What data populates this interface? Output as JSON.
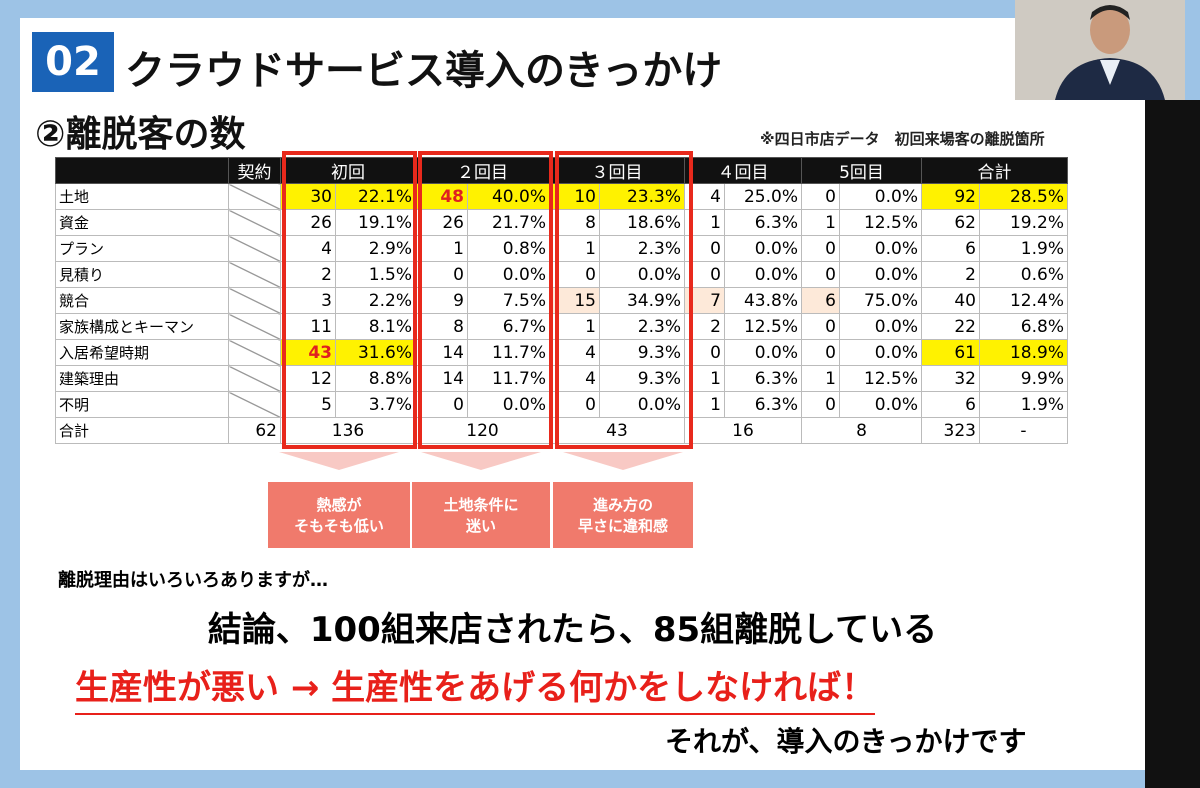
{
  "header": {
    "badge": "02",
    "title": "クラウドサービス導入のきっかけ",
    "subtitle": "②離脱客の数",
    "note": "※四日市店データ　初回来場客の離脱箇所"
  },
  "table": {
    "columns": [
      "契約",
      "初回",
      "２回目",
      "３回目",
      "４回目",
      "5回目",
      "合計"
    ],
    "rows": [
      [
        "土地",
        "30",
        "22.1%",
        "48",
        "40.0%",
        "10",
        "23.3%",
        "4",
        "25.0%",
        "0",
        "0.0%",
        "92",
        "28.5%"
      ],
      [
        "資金",
        "26",
        "19.1%",
        "26",
        "21.7%",
        "8",
        "18.6%",
        "1",
        "6.3%",
        "1",
        "12.5%",
        "62",
        "19.2%"
      ],
      [
        "プラン",
        "4",
        "2.9%",
        "1",
        "0.8%",
        "1",
        "2.3%",
        "0",
        "0.0%",
        "0",
        "0.0%",
        "6",
        "1.9%"
      ],
      [
        "見積り",
        "2",
        "1.5%",
        "0",
        "0.0%",
        "0",
        "0.0%",
        "0",
        "0.0%",
        "0",
        "0.0%",
        "2",
        "0.6%"
      ],
      [
        "競合",
        "3",
        "2.2%",
        "9",
        "7.5%",
        "15",
        "34.9%",
        "7",
        "43.8%",
        "6",
        "75.0%",
        "40",
        "12.4%"
      ],
      [
        "家族構成とキーマン",
        "11",
        "8.1%",
        "8",
        "6.7%",
        "1",
        "2.3%",
        "2",
        "12.5%",
        "0",
        "0.0%",
        "22",
        "6.8%"
      ],
      [
        "入居希望時期",
        "43",
        "31.6%",
        "14",
        "11.7%",
        "4",
        "9.3%",
        "0",
        "0.0%",
        "0",
        "0.0%",
        "61",
        "18.9%"
      ],
      [
        "建築理由",
        "12",
        "8.8%",
        "14",
        "11.7%",
        "4",
        "9.3%",
        "1",
        "6.3%",
        "1",
        "12.5%",
        "32",
        "9.9%"
      ],
      [
        "不明",
        "5",
        "3.7%",
        "0",
        "0.0%",
        "0",
        "0.0%",
        "1",
        "6.3%",
        "0",
        "0.0%",
        "6",
        "1.9%"
      ]
    ],
    "total_row": [
      "合計",
      "62",
      "136",
      "120",
      "43",
      "16",
      "8",
      "323",
      "-"
    ]
  },
  "callouts": [
    [
      "熱感が",
      "そもそも低い"
    ],
    [
      "土地条件に",
      "迷い"
    ],
    [
      "進み方の",
      "早さに違和感"
    ]
  ],
  "footer": {
    "lead": "離脱理由はいろいろありますが…",
    "conclusion": "結論、100組来店されたら、85組離脱している",
    "emphasis": "生産性が悪い → 生産性をあげる何かをしなければ！",
    "closing": "それが、導入のきっかけです"
  }
}
